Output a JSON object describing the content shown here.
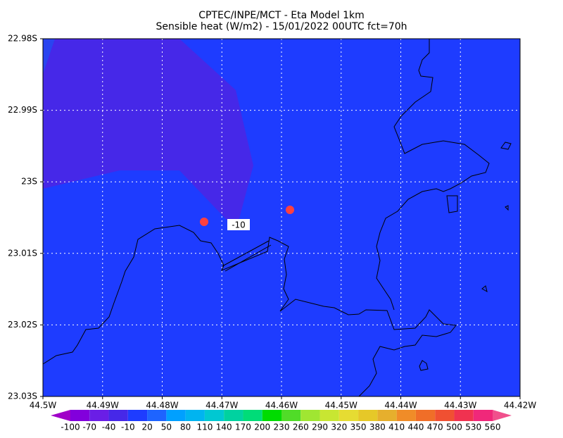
{
  "header": {
    "title": "CPTEC/INPE/MCT -  Eta Model 1km",
    "subtitle": "Sensible heat (W/m2) - 15/01/2022 00UTC fct=70h"
  },
  "map": {
    "x_labels": [
      "44.5W",
      "44.49W",
      "44.48W",
      "44.47W",
      "44.46W",
      "44.45W",
      "44.44W",
      "44.43W",
      "44.42W"
    ],
    "y_labels": [
      "22.98S",
      "22.99S",
      "23S",
      "23.01S",
      "23.02S",
      "23.03S"
    ],
    "contour_label": "-10"
  },
  "colorbar": {
    "levels": [
      -100,
      -70,
      -40,
      -10,
      20,
      50,
      80,
      110,
      140,
      170,
      200,
      230,
      260,
      290,
      320,
      350,
      380,
      410,
      440,
      470,
      500,
      530,
      560
    ],
    "colors": [
      "#a000c8",
      "#8200dc",
      "#6a1ee6",
      "#4628e8",
      "#1e3cff",
      "#1e64ff",
      "#00a0ff",
      "#00b4f0",
      "#00c8d2",
      "#00d2a0",
      "#00dc78",
      "#00dc00",
      "#50dc28",
      "#a0e632",
      "#c8e632",
      "#e6dc32",
      "#e6c828",
      "#e6af2d",
      "#f08c28",
      "#f06e28",
      "#f05032",
      "#f03250",
      "#f0287a",
      "#f0508c"
    ]
  }
}
